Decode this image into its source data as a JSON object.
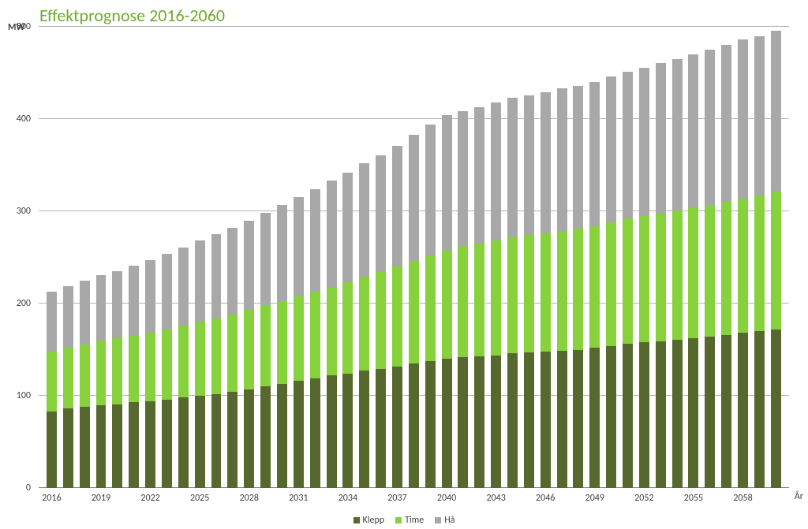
{
  "chart": {
    "type": "stacked-bar",
    "title": "Effektprognose 2016-2060",
    "title_color": "#6fa92f",
    "title_fontsize": 22,
    "y_axis_title": "MW",
    "y_axis_title_fontsize": 12,
    "y_axis_title_color": "#404040",
    "x_axis_title": "År",
    "x_axis_title_fontsize": 12,
    "x_axis_title_color": "#404040",
    "background_color": "#ffffff",
    "plot_background_color": "#ffffff",
    "grid_color": "#b3b3b3",
    "axis_line_color": "#808080",
    "tick_label_fontsize": 12,
    "tick_label_color": "#404040",
    "ylim": [
      0,
      500
    ],
    "ytick_step": 100,
    "y_ticks": [
      0,
      100,
      200,
      300,
      400,
      500
    ],
    "bar_width_ratio": 0.62,
    "years": [
      2016,
      2017,
      2018,
      2019,
      2020,
      2021,
      2022,
      2023,
      2024,
      2025,
      2026,
      2027,
      2028,
      2029,
      2030,
      2031,
      2032,
      2033,
      2034,
      2035,
      2036,
      2037,
      2038,
      2039,
      2040,
      2041,
      2042,
      2043,
      2044,
      2045,
      2046,
      2047,
      2048,
      2049,
      2050,
      2051,
      2052,
      2053,
      2054,
      2055,
      2056,
      2057,
      2058,
      2059,
      2060
    ],
    "x_tick_labels": [
      "2016",
      "",
      "",
      "2019",
      "",
      "",
      "2022",
      "",
      "",
      "2025",
      "",
      "",
      "2028",
      "",
      "",
      "2031",
      "",
      "",
      "2034",
      "",
      "",
      "2037",
      "",
      "",
      "2040",
      "",
      "",
      "2043",
      "",
      "",
      "2046",
      "",
      "",
      "2049",
      "",
      "",
      "2052",
      "",
      "",
      "2055",
      "",
      "",
      "2058",
      "",
      ""
    ],
    "series": [
      {
        "name": "Klepp",
        "color": "#57682f",
        "values": [
          83,
          86,
          88,
          90,
          91,
          93,
          94,
          96,
          98,
          100,
          102,
          104,
          107,
          110,
          113,
          116,
          119,
          122,
          124,
          127,
          129,
          132,
          135,
          138,
          140,
          142,
          143,
          144,
          146,
          147,
          148,
          149,
          150,
          152,
          154,
          156,
          158,
          159,
          161,
          162,
          164,
          166,
          168,
          170,
          172
        ]
      },
      {
        "name": "Time",
        "color": "#87d13c",
        "values": [
          65,
          66,
          68,
          70,
          71,
          72,
          74,
          76,
          78,
          80,
          82,
          84,
          86,
          88,
          90,
          92,
          94,
          96,
          99,
          102,
          105,
          108,
          111,
          114,
          117,
          120,
          122,
          124,
          126,
          127,
          128,
          130,
          131,
          132,
          134,
          136,
          137,
          139,
          140,
          142,
          143,
          144,
          146,
          147,
          149
        ]
      },
      {
        "name": "Hå",
        "color": "#a8a8a8",
        "values": [
          65,
          67,
          69,
          71,
          73,
          76,
          79,
          82,
          85,
          88,
          91,
          94,
          97,
          100,
          104,
          107,
          111,
          115,
          119,
          123,
          127,
          131,
          137,
          142,
          147,
          147,
          148,
          150,
          151,
          152,
          153,
          154,
          155,
          156,
          158,
          159,
          161,
          163,
          164,
          166,
          168,
          170,
          172,
          173,
          175
        ]
      }
    ],
    "legend": {
      "position": "bottom",
      "fontsize": 12,
      "text_color": "#404040"
    }
  }
}
